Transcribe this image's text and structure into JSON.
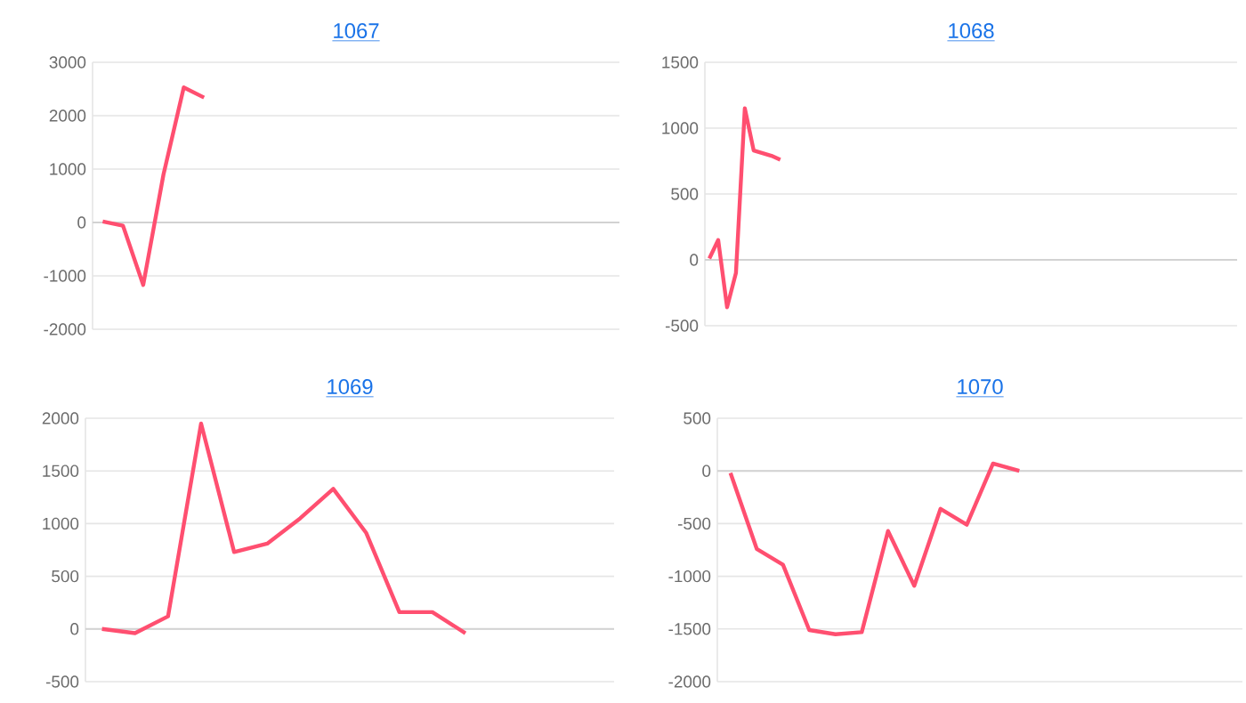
{
  "chart_data": [
    {
      "type": "line",
      "title": "1067",
      "color": "#ff4f70",
      "grid": "y",
      "tick_labels": "y",
      "ylim": [
        -2000,
        3000
      ],
      "yticks": [
        -2000,
        -1000,
        0,
        1000,
        2000,
        3000
      ],
      "categories": [
        null,
        null,
        null,
        null,
        null,
        null,
        null,
        null,
        null,
        null,
        null,
        null,
        null,
        null,
        null,
        null,
        null,
        null,
        null,
        null,
        null,
        null,
        null,
        null,
        null,
        null
      ],
      "values": [
        20,
        -60,
        -1170,
        900,
        2530,
        2340,
        null,
        null,
        null,
        null,
        null,
        null,
        null,
        null,
        null,
        null,
        null,
        null,
        null,
        null,
        null,
        null,
        null,
        null,
        null,
        null
      ]
    },
    {
      "type": "line",
      "title": "1068",
      "color": "#ff4f70",
      "grid": "y",
      "tick_labels": "y",
      "ylim": [
        -500,
        1500
      ],
      "yticks": [
        -500,
        0,
        500,
        1000,
        1500
      ],
      "categories": [
        null,
        null,
        null,
        null,
        null,
        null,
        null,
        null,
        null,
        null,
        null,
        null,
        null,
        null,
        null,
        null,
        null,
        null,
        null,
        null,
        null,
        null,
        null,
        null,
        null,
        null,
        null,
        null,
        null,
        null,
        null,
        null,
        null,
        null,
        null,
        null,
        null,
        null,
        null,
        null,
        null,
        null,
        null,
        null,
        null,
        null,
        null,
        null,
        null,
        null,
        null,
        null,
        null,
        null,
        null,
        null,
        null,
        null,
        null,
        null
      ],
      "values": [
        10,
        150,
        -360,
        -100,
        1150,
        830,
        810,
        790,
        760,
        null,
        null,
        null,
        null,
        null,
        null,
        null,
        null,
        null,
        null,
        null,
        null,
        null,
        null,
        null,
        null,
        null,
        null,
        null,
        null,
        null,
        null,
        null,
        null,
        null,
        null,
        null,
        null,
        null,
        null,
        null,
        null,
        null,
        null,
        null,
        null,
        null,
        null,
        null,
        null,
        null,
        null,
        null,
        null,
        null,
        null,
        null,
        null,
        null,
        null,
        null
      ]
    },
    {
      "type": "line",
      "title": "1069",
      "color": "#ff4f70",
      "grid": "y",
      "tick_labels": "y",
      "ylim": [
        -500,
        2000
      ],
      "yticks": [
        -500,
        0,
        500,
        1000,
        1500,
        2000
      ],
      "categories": [
        null,
        null,
        null,
        null,
        null,
        null,
        null,
        null,
        null,
        null,
        null,
        null,
        null,
        null,
        null,
        null
      ],
      "values": [
        0,
        -40,
        120,
        1950,
        730,
        810,
        1050,
        1330,
        910,
        160,
        160,
        -40,
        null,
        null,
        null,
        null
      ]
    },
    {
      "type": "line",
      "title": "1070",
      "color": "#ff4f70",
      "grid": "y",
      "tick_labels": "y",
      "ylim": [
        -2000,
        500
      ],
      "yticks": [
        -2000,
        -1500,
        -1000,
        -500,
        0,
        500
      ],
      "categories": [
        null,
        null,
        null,
        null,
        null,
        null,
        null,
        null,
        null,
        null,
        null,
        null,
        null,
        null,
        null,
        null,
        null,
        null,
        null,
        null
      ],
      "values": [
        -20,
        -740,
        -890,
        -1510,
        -1550,
        -1530,
        -570,
        -1090,
        -360,
        -510,
        70,
        0,
        null,
        null,
        null,
        null,
        null,
        null,
        null,
        null
      ]
    }
  ]
}
